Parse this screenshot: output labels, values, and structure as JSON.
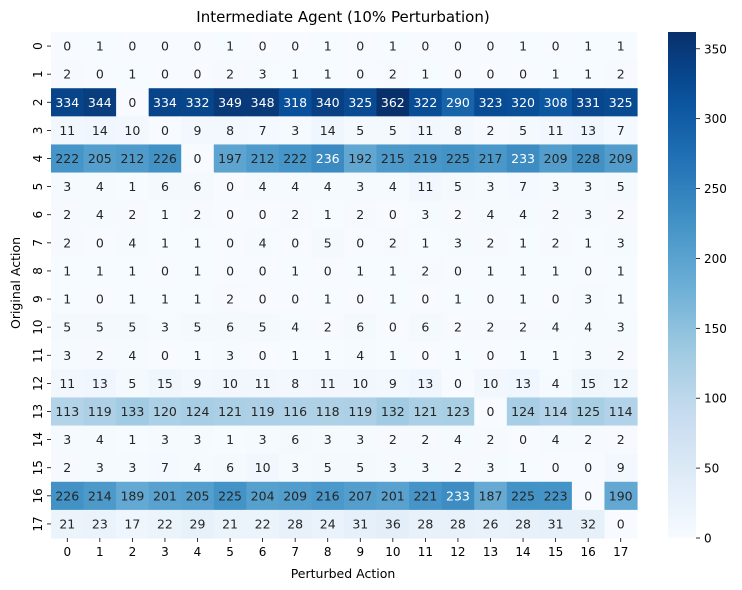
{
  "chart_data": {
    "type": "heatmap",
    "title": "Intermediate Agent (10% Perturbation)",
    "xlabel": "Perturbed Action",
    "ylabel": "Original Action",
    "x_categories": [
      "0",
      "1",
      "2",
      "3",
      "4",
      "5",
      "6",
      "7",
      "8",
      "9",
      "10",
      "11",
      "12",
      "13",
      "14",
      "15",
      "16",
      "17"
    ],
    "y_categories": [
      "0",
      "1",
      "2",
      "3",
      "4",
      "5",
      "6",
      "7",
      "8",
      "9",
      "10",
      "11",
      "12",
      "13",
      "14",
      "15",
      "16",
      "17"
    ],
    "colormap": "Blues",
    "vmin": 0,
    "vmax": 362,
    "colorbar_ticks": [
      0,
      50,
      100,
      150,
      200,
      250,
      300,
      350
    ],
    "values": [
      [
        0,
        1,
        0,
        0,
        0,
        1,
        0,
        0,
        1,
        0,
        1,
        0,
        0,
        0,
        1,
        0,
        1,
        1
      ],
      [
        2,
        0,
        1,
        0,
        0,
        2,
        3,
        1,
        1,
        0,
        2,
        1,
        0,
        0,
        0,
        1,
        1,
        2
      ],
      [
        334,
        344,
        0,
        334,
        332,
        349,
        348,
        318,
        340,
        325,
        362,
        322,
        290,
        323,
        320,
        308,
        331,
        325
      ],
      [
        11,
        14,
        10,
        0,
        9,
        8,
        7,
        3,
        14,
        5,
        5,
        11,
        8,
        2,
        5,
        11,
        13,
        7
      ],
      [
        222,
        205,
        212,
        226,
        0,
        197,
        212,
        222,
        236,
        192,
        215,
        219,
        225,
        217,
        233,
        209,
        228,
        209
      ],
      [
        3,
        4,
        1,
        6,
        6,
        0,
        4,
        4,
        4,
        3,
        4,
        11,
        5,
        3,
        7,
        3,
        3,
        5
      ],
      [
        2,
        4,
        2,
        1,
        2,
        0,
        0,
        2,
        1,
        2,
        0,
        3,
        2,
        4,
        4,
        2,
        3,
        2
      ],
      [
        2,
        0,
        4,
        1,
        1,
        0,
        4,
        0,
        5,
        0,
        2,
        1,
        3,
        2,
        1,
        2,
        1,
        3
      ],
      [
        1,
        1,
        1,
        0,
        1,
        0,
        0,
        1,
        0,
        1,
        1,
        2,
        0,
        1,
        1,
        1,
        0,
        1
      ],
      [
        1,
        0,
        1,
        1,
        1,
        2,
        0,
        0,
        1,
        0,
        1,
        0,
        1,
        0,
        1,
        0,
        3,
        1
      ],
      [
        5,
        5,
        5,
        3,
        5,
        6,
        5,
        4,
        2,
        6,
        0,
        6,
        2,
        2,
        2,
        4,
        4,
        3
      ],
      [
        3,
        2,
        4,
        0,
        1,
        3,
        0,
        1,
        1,
        4,
        1,
        0,
        1,
        0,
        1,
        1,
        3,
        2
      ],
      [
        11,
        13,
        5,
        15,
        9,
        10,
        11,
        8,
        11,
        10,
        9,
        13,
        0,
        10,
        13,
        4,
        15,
        12
      ],
      [
        113,
        119,
        133,
        120,
        124,
        121,
        119,
        116,
        118,
        119,
        132,
        121,
        123,
        0,
        124,
        114,
        125,
        114
      ],
      [
        3,
        4,
        1,
        3,
        3,
        1,
        3,
        6,
        3,
        3,
        2,
        2,
        4,
        2,
        0,
        4,
        2,
        2
      ],
      [
        2,
        3,
        3,
        7,
        4,
        6,
        10,
        3,
        5,
        5,
        3,
        3,
        2,
        3,
        1,
        0,
        0,
        9
      ],
      [
        226,
        214,
        189,
        201,
        205,
        225,
        204,
        209,
        216,
        207,
        201,
        221,
        233,
        187,
        225,
        223,
        0,
        190
      ],
      [
        21,
        23,
        17,
        22,
        29,
        21,
        22,
        28,
        24,
        31,
        36,
        28,
        28,
        26,
        28,
        31,
        32,
        0
      ]
    ]
  }
}
